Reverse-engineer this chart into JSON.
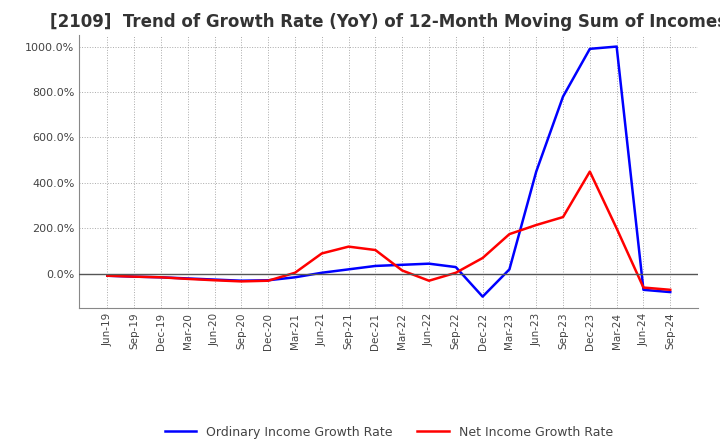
{
  "title": "[2109]  Trend of Growth Rate (YoY) of 12-Month Moving Sum of Incomes",
  "title_fontsize": 12,
  "background_color": "#ffffff",
  "grid_color": "#aaaaaa",
  "ordinary_income_color": "#0000ff",
  "net_income_color": "#ff0000",
  "legend_labels": [
    "Ordinary Income Growth Rate",
    "Net Income Growth Rate"
  ],
  "x_labels": [
    "Jun-19",
    "Sep-19",
    "Dec-19",
    "Mar-20",
    "Jun-20",
    "Sep-20",
    "Dec-20",
    "Mar-21",
    "Jun-21",
    "Sep-21",
    "Dec-21",
    "Mar-22",
    "Jun-22",
    "Sep-22",
    "Dec-22",
    "Mar-23",
    "Jun-23",
    "Sep-23",
    "Dec-23",
    "Mar-24",
    "Jun-24",
    "Sep-24"
  ],
  "ordinary_income_data": [
    -8,
    -12,
    -15,
    -20,
    -25,
    -30,
    -28,
    -15,
    5,
    20,
    35,
    40,
    45,
    30,
    -100,
    20,
    450,
    780,
    990,
    1000,
    -70,
    -80
  ],
  "net_income_data": [
    -8,
    -12,
    -15,
    -22,
    -28,
    -33,
    -30,
    5,
    90,
    120,
    105,
    15,
    -30,
    5,
    70,
    175,
    215,
    250,
    450,
    200,
    -60,
    -70
  ],
  "ylim": [
    -150,
    1050
  ],
  "yticks": [
    0,
    200,
    400,
    600,
    800,
    1000
  ],
  "ytick_labels": [
    "0.0%",
    "200.0%",
    "400.0%",
    "600.0%",
    "800.0%",
    "1000.0%"
  ]
}
